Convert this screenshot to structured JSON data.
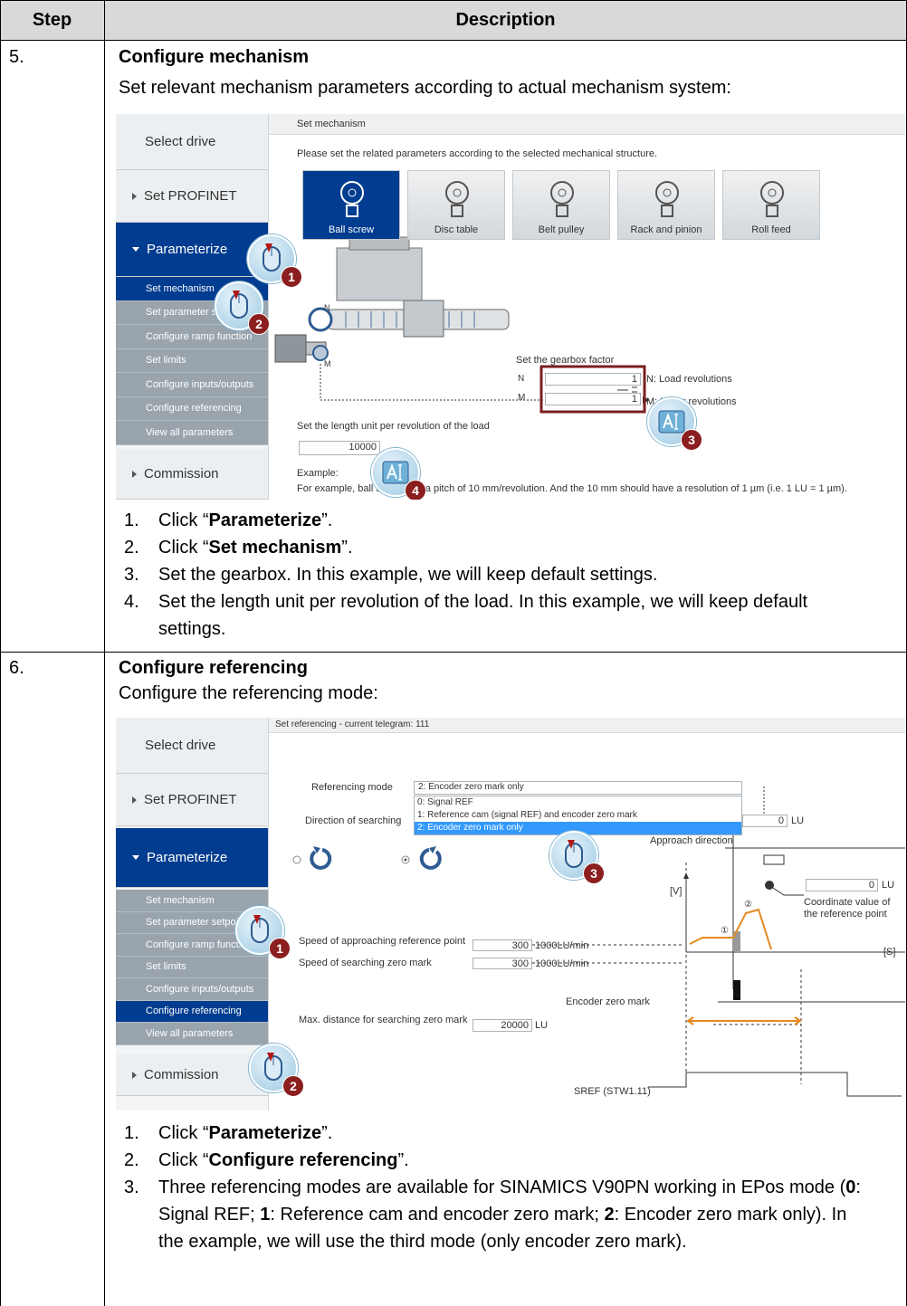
{
  "header": {
    "step": "Step",
    "description": "Description"
  },
  "rows": [
    {
      "step": "5.",
      "title": "Configure mechanism",
      "intro": "Set relevant mechanism parameters according to actual mechanism system:",
      "screenshot": {
        "nav": {
          "select_drive": "Select drive",
          "set_profinet": "Set PROFINET",
          "parameterize": "Parameterize",
          "items": [
            "Set mechanism",
            "Set parameter setpoint",
            "Configure ramp function",
            "Set limits",
            "Configure inputs/outputs",
            "Configure referencing",
            "View all parameters"
          ],
          "selected_item": 0,
          "commission": "Commission"
        },
        "heading": "Set mechanism",
        "instruction": "Please set the related parameters according to the selected mechanical structure.",
        "options": [
          "Ball screw",
          "Disc table",
          "Belt pulley",
          "Rack and pinion",
          "Roll feed"
        ],
        "selected_option": 0,
        "gearbox_label": "Set the gearbox factor",
        "n": "N",
        "m": "M",
        "n_value": "1",
        "m_value": "1",
        "n_desc": "N: Load revolutions",
        "m_desc": "M: Motor revolutions",
        "length_label": "Set the length unit per revolution of the load",
        "length_value": "10000",
        "example_label": "Example:",
        "example_text": "For example, ball screw with a pitch of 10 mm/revolution. And the 10 mm should have a resolution of 1 µm (i.e. 1 LU = 1 µm).",
        "callouts": [
          "1",
          "2",
          "3",
          "4"
        ]
      },
      "steps": [
        {
          "number": "1.",
          "parts": [
            "Click “",
            "Parameterize",
            "”."
          ]
        },
        {
          "number": "2.",
          "parts": [
            "Click “",
            "Set mechanism",
            "”."
          ]
        },
        {
          "number": "3.",
          "parts": [
            "Set the gearbox. In this example, we will keep default settings."
          ]
        },
        {
          "number": "4.",
          "parts": [
            "Set the length unit per revolution of the load. In this example, we will keep default settings."
          ]
        }
      ]
    },
    {
      "step": "6.",
      "title": "Configure referencing",
      "intro": "Configure the referencing mode:",
      "screenshot": {
        "nav": {
          "select_drive": "Select drive",
          "set_profinet": "Set PROFINET",
          "parameterize": "Parameterize",
          "items": [
            "Set mechanism",
            "Set parameter setpoint",
            "Configure ramp function",
            "Set limits",
            "Configure inputs/outputs",
            "Configure referencing",
            "View all parameters"
          ],
          "selected_item": 5,
          "commission": "Commission"
        },
        "heading": "Set referencing - current telegram: 111",
        "mode_label": "Referencing mode",
        "mode_value": "2: Encoder zero mark only",
        "mode_options": [
          "0: Signal REF",
          "1: Reference cam (signal REF) and encoder zero mark",
          "2: Encoder zero mark only"
        ],
        "selected_option": 2,
        "direction_label": "Direction of searching",
        "direction_value": "0",
        "direction_unit": "LU",
        "approach_label": "Approach direction",
        "coord_value": "0",
        "coord_unit": "LU",
        "coord_label": "Coordinate value of the reference point",
        "v_axis": "[V]",
        "s_axis": "[S]",
        "speed_approach_label": "Speed of approaching reference point",
        "speed_approach_value": "300",
        "speed_approach_unit": "1000LU/min",
        "speed_search_label": "Speed of searching zero mark",
        "speed_search_value": "300",
        "speed_search_unit": "1000LU/min",
        "encoder_zero_mark": "Encoder zero mark",
        "max_distance_label": "Max. distance for searching zero mark",
        "max_distance_value": "20000",
        "max_distance_unit": "LU",
        "sref_label": "SREF (STW1.11)",
        "phase_1": "①",
        "phase_2": "②",
        "callouts": [
          "1",
          "2",
          "3"
        ]
      },
      "steps": [
        {
          "number": "1.",
          "parts": [
            "Click “",
            "Parameterize",
            "”."
          ]
        },
        {
          "number": "2.",
          "parts": [
            "Click “",
            "Configure referencing",
            "”."
          ]
        },
        {
          "number": "3.",
          "parts": [
            "Three referencing modes are available for SINAMICS V90PN working in EPos mode (",
            "0",
            ": Signal REF; ",
            "1",
            ": Reference cam and encoder zero mark; ",
            "2",
            ": Encoder zero mark only). In the example, we will use the third mode (only encoder zero mark)."
          ]
        }
      ]
    }
  ]
}
